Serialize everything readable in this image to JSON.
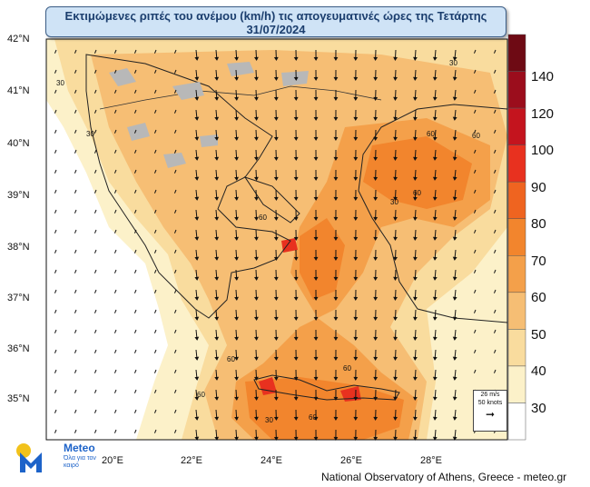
{
  "title": {
    "line1": "Εκτιμώμενες ριπές του ανέμου (km/h) τις απογευματινές ώρες της Τετάρτης",
    "line2": "31/07/2024"
  },
  "latitude_labels": [
    "42°N",
    "41°N",
    "40°N",
    "39°N",
    "38°N",
    "37°N",
    "36°N",
    "35°N"
  ],
  "longitude_labels": [
    "20°E",
    "22°E",
    "24°E",
    "26°E",
    "28°E"
  ],
  "contour_labels": [
    "30",
    "60"
  ],
  "colorbar": {
    "labels": [
      "140",
      "120",
      "100",
      "90",
      "80",
      "70",
      "60",
      "50",
      "40",
      "30"
    ],
    "colors": [
      "#6e0a14",
      "#9b0d1c",
      "#c4141e",
      "#e8311f",
      "#ef6420",
      "#f2852d",
      "#f4a04a",
      "#f6be74",
      "#f9dc9e",
      "#fcf1c9",
      "#ffffff"
    ]
  },
  "legend": {
    "ms": "26 m/s",
    "knots": "50 knots"
  },
  "logo": {
    "name": "Meteo",
    "tagline": "Όλα για τον καιρό"
  },
  "credit": "National Observatory of Athens, Greece - meteo.gr"
}
